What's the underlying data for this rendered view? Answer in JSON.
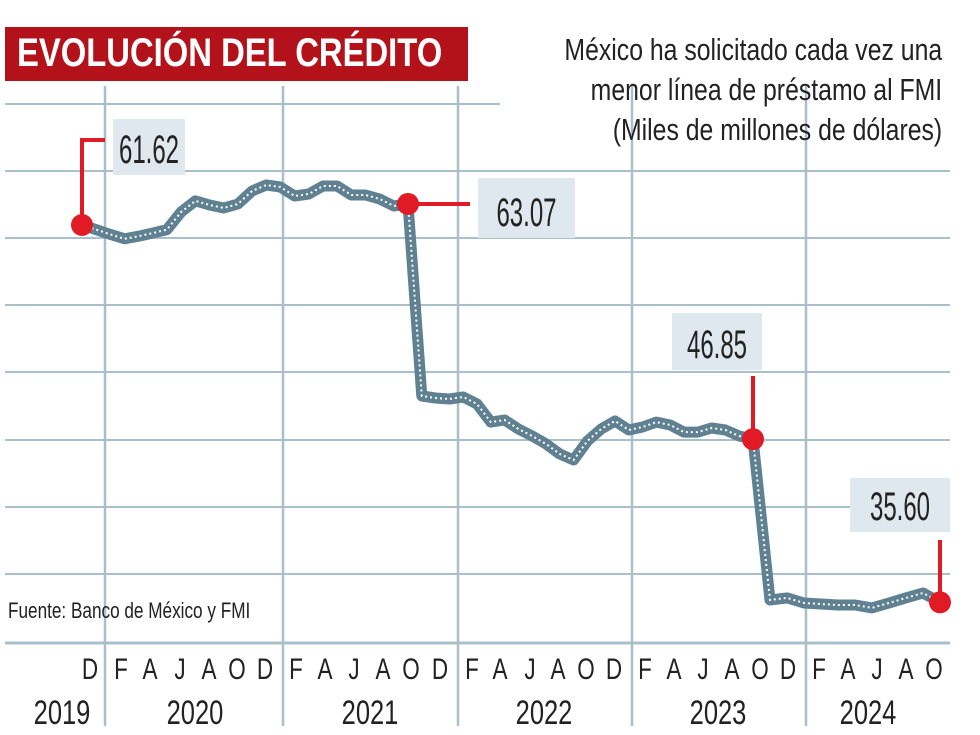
{
  "header": {
    "title": "EVOLUCIÓN DEL CRÉDITO",
    "subtitle_lines": [
      "México ha solicitado cada vez una",
      "menor línea de préstamo al FMI",
      "(Miles de millones de dólares)"
    ]
  },
  "source": "Fuente: Banco de México y FMI",
  "colors": {
    "title_bg": "#b3121b",
    "line": "#5f8192",
    "line_dots": "#ffffff",
    "marker": "#e01b25",
    "grid": "#a9c0cc",
    "label_bg": "#dfe8ee"
  },
  "chart_data": {
    "type": "line",
    "title": "EVOLUCIÓN DEL CRÉDITO",
    "ylabel": "(Miles de millones de dólares)",
    "xlabel": "",
    "grid": true,
    "y_axis_labels_shown": false,
    "x_month_ticks": [
      "D",
      "F",
      "A",
      "J",
      "A",
      "O",
      "D",
      "F",
      "A",
      "J",
      "A",
      "O",
      "D",
      "F",
      "A",
      "J",
      "A",
      "O",
      "D",
      "F",
      "A",
      "J",
      "A",
      "O",
      "D",
      "F",
      "A",
      "J",
      "A",
      "O"
    ],
    "x_year_ticks": [
      "2019",
      "2020",
      "2021",
      "2022",
      "2023",
      "2024"
    ],
    "x_start": "2019-12",
    "x_end": "2024-11",
    "series": [
      {
        "values": [
          61.62,
          61.3,
          60.97,
          60.67,
          60.85,
          61.07,
          61.3,
          62.52,
          63.28,
          63.0,
          62.79,
          63.07,
          63.97,
          64.38,
          64.24,
          63.62,
          63.76,
          64.31,
          64.31,
          63.69,
          63.69,
          63.41,
          62.93,
          63.07,
          49.83,
          49.69,
          49.62,
          49.76,
          49.28,
          48.03,
          48.17,
          47.55,
          47.07,
          46.52,
          45.83,
          45.41,
          46.72,
          47.55,
          48.1,
          47.48,
          47.69,
          48.03,
          47.83,
          47.34,
          47.34,
          47.62,
          47.48,
          47.07,
          46.85,
          35.76,
          35.9,
          35.55,
          35.48,
          35.41,
          35.41,
          35.21,
          35.55,
          35.9,
          36.24,
          35.6
        ]
      }
    ],
    "annotations": [
      {
        "index": 0,
        "label": "61.62"
      },
      {
        "index": 23,
        "label": "63.07"
      },
      {
        "index": 48,
        "label": "46.85"
      },
      {
        "index": 59,
        "label": "35.60"
      }
    ]
  }
}
